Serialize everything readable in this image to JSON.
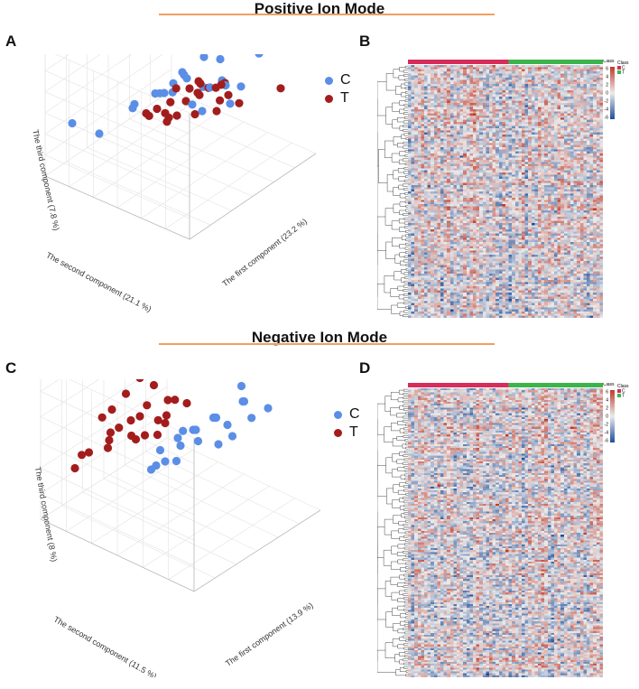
{
  "sections": {
    "positive": {
      "title": "Positive Ion Mode"
    },
    "negative": {
      "title": "Negative Ion Mode"
    }
  },
  "panel_labels": {
    "A": "A",
    "B": "B",
    "C": "C",
    "D": "D"
  },
  "colors": {
    "title_rule": "#f0a060",
    "group_C": "#5b8ee6",
    "group_T": "#a31d1d",
    "class_bar_C": "#d62d5a",
    "class_bar_T": "#3cb44b",
    "heat_low": "#1f4e9a",
    "heat_mid": "#ebebeb",
    "heat_high": "#c0392b"
  },
  "chart_data": [
    {
      "id": "A",
      "type": "scatter",
      "title": "",
      "projection": "3d",
      "xlabel": "The first component (23.2 %)",
      "ylabel": "The second component (21.1 %)",
      "zlabel": "The third component (7.8 %)",
      "legend": [
        "C",
        "T"
      ],
      "legend_position": "top-right",
      "series": [
        {
          "name": "C",
          "points": [
            [
              0.85,
              0.25,
              0.8
            ],
            [
              0.7,
              0.4,
              0.75
            ],
            [
              0.6,
              0.3,
              0.7
            ],
            [
              0.55,
              0.5,
              0.65
            ],
            [
              0.8,
              0.6,
              0.6
            ],
            [
              0.9,
              0.2,
              0.9
            ],
            [
              0.45,
              0.6,
              0.55
            ],
            [
              0.5,
              0.35,
              0.5
            ],
            [
              0.35,
              0.7,
              0.45
            ],
            [
              0.65,
              0.55,
              0.35
            ],
            [
              0.2,
              0.8,
              0.3
            ],
            [
              0.4,
              0.4,
              0.85
            ],
            [
              0.3,
              0.5,
              0.7
            ],
            [
              0.6,
              0.7,
              0.4
            ],
            [
              0.75,
              0.3,
              0.55
            ],
            [
              0.1,
              0.9,
              0.4
            ],
            [
              0.55,
              0.2,
              0.6
            ],
            [
              0.45,
              0.3,
              0.75
            ],
            [
              0.25,
              0.6,
              0.6
            ],
            [
              0.7,
              0.65,
              0.5
            ],
            [
              0.8,
              0.45,
              0.45
            ],
            [
              0.5,
              0.55,
              0.62
            ],
            [
              0.38,
              0.45,
              0.68
            ],
            [
              0.62,
              0.4,
              0.58
            ],
            [
              0.95,
              0.35,
              0.65
            ]
          ]
        },
        {
          "name": "T",
          "points": [
            [
              0.65,
              0.3,
              0.55
            ],
            [
              0.7,
              0.55,
              0.5
            ],
            [
              0.6,
              0.45,
              0.6
            ],
            [
              0.5,
              0.4,
              0.45
            ],
            [
              0.75,
              0.6,
              0.35
            ],
            [
              0.85,
              0.4,
              0.3
            ],
            [
              0.95,
              0.2,
              0.45
            ],
            [
              0.55,
              0.65,
              0.3
            ],
            [
              0.45,
              0.55,
              0.35
            ],
            [
              0.35,
              0.45,
              0.5
            ],
            [
              0.4,
              0.65,
              0.4
            ],
            [
              0.3,
              0.35,
              0.6
            ],
            [
              0.6,
              0.75,
              0.25
            ],
            [
              0.8,
              0.7,
              0.3
            ],
            [
              0.5,
              0.25,
              0.55
            ],
            [
              0.65,
              0.5,
              0.45
            ],
            [
              0.55,
              0.35,
              0.65
            ],
            [
              0.72,
              0.42,
              0.4
            ],
            [
              0.58,
              0.6,
              0.5
            ],
            [
              0.42,
              0.5,
              0.55
            ],
            [
              0.88,
              0.55,
              0.35
            ],
            [
              0.48,
              0.7,
              0.3
            ],
            [
              0.68,
              0.35,
              0.6
            ],
            [
              0.78,
              0.5,
              0.42
            ],
            [
              0.52,
              0.48,
              0.5
            ]
          ]
        }
      ]
    },
    {
      "id": "B",
      "type": "heatmap",
      "title": "",
      "legend_title": "Class",
      "class_legend": [
        "C",
        "T"
      ],
      "scale_ticks": [
        "6",
        "4",
        "2",
        "0",
        "-2",
        "-4",
        "-6"
      ],
      "columns": 60,
      "rows": 120,
      "groups": [
        {
          "name": "C",
          "count": 31
        },
        {
          "name": "T",
          "count": 29
        }
      ],
      "dendrogram_leaves": 120
    },
    {
      "id": "C",
      "type": "scatter",
      "title": "",
      "projection": "3d",
      "xlabel": "The first component (13.9 %)",
      "ylabel": "The second component (11.5 %)",
      "zlabel": "The third component (8 %)",
      "legend": [
        "C",
        "T"
      ],
      "legend_position": "top-right",
      "series": [
        {
          "name": "C",
          "points": [
            [
              0.9,
              0.2,
              0.9
            ],
            [
              0.85,
              0.25,
              0.85
            ],
            [
              0.8,
              0.35,
              0.75
            ],
            [
              0.75,
              0.3,
              0.7
            ],
            [
              0.7,
              0.45,
              0.55
            ],
            [
              0.65,
              0.4,
              0.6
            ],
            [
              0.6,
              0.5,
              0.5
            ],
            [
              0.55,
              0.45,
              0.55
            ],
            [
              0.5,
              0.5,
              0.45
            ],
            [
              0.6,
              0.6,
              0.4
            ],
            [
              0.7,
              0.55,
              0.35
            ],
            [
              0.8,
              0.5,
              0.3
            ],
            [
              0.85,
              0.45,
              0.35
            ],
            [
              0.5,
              0.6,
              0.3
            ],
            [
              0.45,
              0.65,
              0.25
            ],
            [
              0.55,
              0.7,
              0.2
            ],
            [
              0.65,
              0.65,
              0.2
            ],
            [
              0.4,
              0.55,
              0.45
            ],
            [
              0.75,
              0.4,
              0.5
            ],
            [
              0.6,
              0.35,
              0.65
            ],
            [
              0.7,
              0.25,
              0.75
            ],
            [
              0.5,
              0.4,
              0.6
            ],
            [
              0.95,
              0.3,
              0.55
            ],
            [
              0.88,
              0.35,
              0.5
            ],
            [
              0.58,
              0.55,
              0.48
            ]
          ]
        },
        {
          "name": "T",
          "points": [
            [
              0.3,
              0.6,
              0.95
            ],
            [
              0.35,
              0.55,
              0.9
            ],
            [
              0.25,
              0.65,
              0.85
            ],
            [
              0.4,
              0.5,
              0.8
            ],
            [
              0.2,
              0.7,
              0.75
            ],
            [
              0.3,
              0.6,
              0.7
            ],
            [
              0.45,
              0.55,
              0.65
            ],
            [
              0.35,
              0.7,
              0.6
            ],
            [
              0.25,
              0.75,
              0.55
            ],
            [
              0.4,
              0.65,
              0.5
            ],
            [
              0.5,
              0.6,
              0.55
            ],
            [
              0.3,
              0.8,
              0.45
            ],
            [
              0.2,
              0.85,
              0.4
            ],
            [
              0.15,
              0.9,
              0.3
            ],
            [
              0.45,
              0.75,
              0.4
            ],
            [
              0.35,
              0.85,
              0.35
            ],
            [
              0.55,
              0.5,
              0.7
            ],
            [
              0.5,
              0.65,
              0.45
            ],
            [
              0.42,
              0.58,
              0.62
            ],
            [
              0.28,
              0.72,
              0.58
            ],
            [
              0.38,
              0.62,
              0.72
            ],
            [
              0.48,
              0.52,
              0.75
            ],
            [
              0.33,
              0.68,
              0.52
            ],
            [
              0.22,
              0.78,
              0.65
            ],
            [
              0.18,
              0.88,
              0.38
            ]
          ]
        }
      ]
    },
    {
      "id": "D",
      "type": "heatmap",
      "title": "",
      "legend_title": "Class",
      "class_legend": [
        "C",
        "T"
      ],
      "scale_ticks": [
        "6",
        "4",
        "2",
        "0",
        "-2",
        "-4",
        "-6"
      ],
      "columns": 60,
      "rows": 150,
      "groups": [
        {
          "name": "C",
          "count": 31
        },
        {
          "name": "T",
          "count": 29
        }
      ],
      "dendrogram_leaves": 150
    }
  ]
}
